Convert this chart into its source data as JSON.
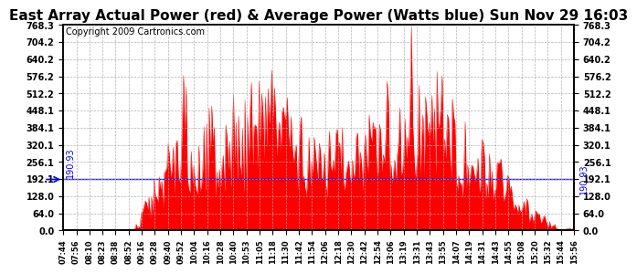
{
  "title": "East Array Actual Power (red) & Average Power (Watts blue) Sun Nov 29 16:03",
  "copyright": "Copyright 2009 Cartronics.com",
  "avg_power": 190.93,
  "avg_label": "190.93",
  "ymin": 0.0,
  "ymax": 768.3,
  "yticks": [
    0.0,
    64.0,
    128.0,
    192.1,
    256.1,
    320.1,
    384.1,
    448.1,
    512.2,
    576.2,
    640.2,
    704.2,
    768.3
  ],
  "ytick_labels": [
    "0.0",
    "64.0",
    "128.0",
    "192.1",
    "256.1",
    "320.1",
    "384.1",
    "448.1",
    "512.2",
    "576.2",
    "640.2",
    "704.2",
    "768.3"
  ],
  "xtick_labels": [
    "07:44",
    "07:56",
    "08:10",
    "08:23",
    "08:38",
    "08:52",
    "09:16",
    "09:28",
    "09:40",
    "09:52",
    "10:04",
    "10:16",
    "10:28",
    "10:40",
    "10:53",
    "11:05",
    "11:18",
    "11:30",
    "11:42",
    "11:54",
    "12:06",
    "12:18",
    "12:30",
    "12:42",
    "12:54",
    "13:06",
    "13:19",
    "13:31",
    "13:43",
    "13:55",
    "14:07",
    "14:19",
    "14:31",
    "14:43",
    "14:55",
    "15:08",
    "15:20",
    "15:32",
    "15:44",
    "15:56"
  ],
  "bar_color": "#FF0000",
  "line_color": "#0000FF",
  "bg_color": "#FFFFFF",
  "grid_color": "#AAAAAA",
  "title_fontsize": 11,
  "copyright_fontsize": 7,
  "avg_fontsize": 7,
  "tick_fontsize": 7,
  "xtick_fontsize": 6
}
